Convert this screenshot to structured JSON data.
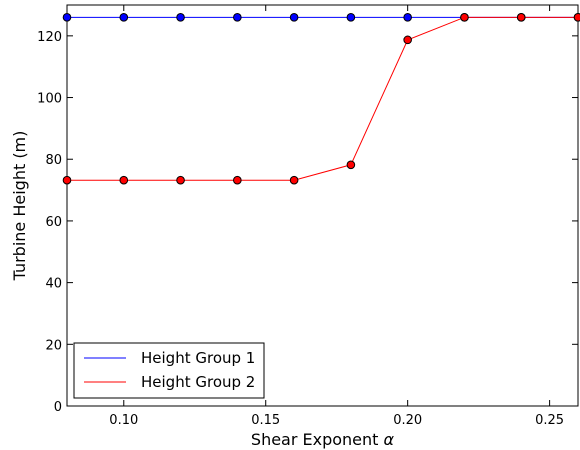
{
  "chart_data": {
    "type": "line",
    "title": "",
    "xlabel": "Shear Exponent",
    "xlabel_symbol": "α",
    "ylabel": "Turbine Height (m)",
    "xlim": [
      0.08,
      0.26
    ],
    "ylim": [
      0,
      130
    ],
    "xticks": [
      "0.10",
      "0.15",
      "0.20",
      "0.25"
    ],
    "yticks": [
      "0",
      "20",
      "40",
      "60",
      "80",
      "100",
      "120"
    ],
    "grid": false,
    "legend_position": "lower-left",
    "x": [
      0.08,
      0.1,
      0.12,
      0.14,
      0.16,
      0.18,
      0.2,
      0.22,
      0.24,
      0.26
    ],
    "series": [
      {
        "name": "Height Group 1",
        "color": "#0000ff",
        "values": [
          126,
          126,
          126,
          126,
          126,
          126,
          126,
          126,
          126,
          126
        ]
      },
      {
        "name": "Height Group 2",
        "color": "#ff0000",
        "values": [
          73.2,
          73.2,
          73.2,
          73.2,
          73.2,
          78.2,
          118.7,
          126,
          126,
          126
        ]
      }
    ]
  }
}
